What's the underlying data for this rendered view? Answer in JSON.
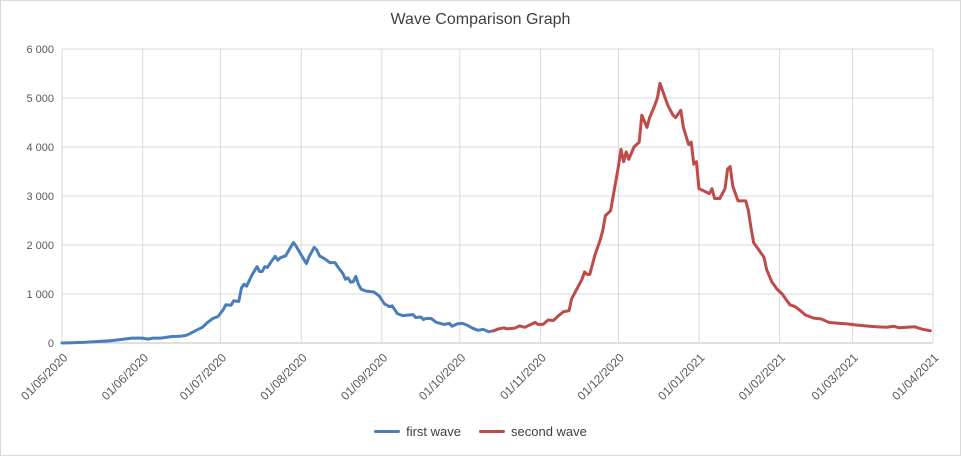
{
  "chart_data": {
    "type": "line",
    "title": "Wave Comparison  Graph",
    "xlabel": "",
    "ylabel": "",
    "ylim": [
      0,
      6000
    ],
    "yticks": [
      0,
      1000,
      2000,
      3000,
      4000,
      5000,
      6000
    ],
    "ytick_labels": [
      "0",
      "1 000",
      "2 000",
      "3 000",
      "4 000",
      "5 000",
      "6 000"
    ],
    "xlim": [
      "2020-05-01",
      "2021-04-01"
    ],
    "xticks": [
      "2020-05-01",
      "2020-06-01",
      "2020-07-01",
      "2020-08-01",
      "2020-09-01",
      "2020-10-01",
      "2020-11-01",
      "2020-12-01",
      "2021-01-01",
      "2021-02-01",
      "2021-03-01",
      "2021-04-01"
    ],
    "xtick_labels": [
      "01/05/2020",
      "01/06/2020",
      "01/07/2020",
      "01/08/2020",
      "01/09/2020",
      "01/10/2020",
      "01/11/2020",
      "01/12/2020",
      "01/01/2021",
      "01/02/2021",
      "01/03/2021",
      "01/04/2021"
    ],
    "grid": "vertical and horizontal",
    "legend": "bottom",
    "series": [
      {
        "name": "first wave",
        "color": "#4a7ebb",
        "points": [
          [
            "2020-05-01",
            0
          ],
          [
            "2020-05-05",
            5
          ],
          [
            "2020-05-10",
            15
          ],
          [
            "2020-05-15",
            30
          ],
          [
            "2020-05-20",
            50
          ],
          [
            "2020-05-25",
            80
          ],
          [
            "2020-05-28",
            100
          ],
          [
            "2020-06-01",
            100
          ],
          [
            "2020-06-03",
            80
          ],
          [
            "2020-06-05",
            100
          ],
          [
            "2020-06-08",
            100
          ],
          [
            "2020-06-12",
            130
          ],
          [
            "2020-06-16",
            140
          ],
          [
            "2020-06-18",
            160
          ],
          [
            "2020-06-21",
            240
          ],
          [
            "2020-06-24",
            320
          ],
          [
            "2020-06-26",
            420
          ],
          [
            "2020-06-28",
            500
          ],
          [
            "2020-06-30",
            540
          ],
          [
            "2020-07-02",
            680
          ],
          [
            "2020-07-03",
            780
          ],
          [
            "2020-07-05",
            770
          ],
          [
            "2020-07-06",
            860
          ],
          [
            "2020-07-08",
            850
          ],
          [
            "2020-07-09",
            1120
          ],
          [
            "2020-07-10",
            1200
          ],
          [
            "2020-07-11",
            1160
          ],
          [
            "2020-07-13",
            1380
          ],
          [
            "2020-07-15",
            1560
          ],
          [
            "2020-07-16",
            1460
          ],
          [
            "2020-07-17",
            1460
          ],
          [
            "2020-07-18",
            1560
          ],
          [
            "2020-07-19",
            1540
          ],
          [
            "2020-07-21",
            1700
          ],
          [
            "2020-07-22",
            1770
          ],
          [
            "2020-07-23",
            1690
          ],
          [
            "2020-07-24",
            1740
          ],
          [
            "2020-07-26",
            1780
          ],
          [
            "2020-07-28",
            1960
          ],
          [
            "2020-07-29",
            2050
          ],
          [
            "2020-07-30",
            1980
          ],
          [
            "2020-08-01",
            1800
          ],
          [
            "2020-08-03",
            1620
          ],
          [
            "2020-08-04",
            1760
          ],
          [
            "2020-08-06",
            1950
          ],
          [
            "2020-08-07",
            1900
          ],
          [
            "2020-08-08",
            1780
          ],
          [
            "2020-08-10",
            1720
          ],
          [
            "2020-08-12",
            1640
          ],
          [
            "2020-08-14",
            1640
          ],
          [
            "2020-08-15",
            1560
          ],
          [
            "2020-08-17",
            1420
          ],
          [
            "2020-08-18",
            1300
          ],
          [
            "2020-08-19",
            1330
          ],
          [
            "2020-08-20",
            1240
          ],
          [
            "2020-08-21",
            1250
          ],
          [
            "2020-08-22",
            1360
          ],
          [
            "2020-08-23",
            1200
          ],
          [
            "2020-08-24",
            1100
          ],
          [
            "2020-08-26",
            1060
          ],
          [
            "2020-08-29",
            1040
          ],
          [
            "2020-08-31",
            960
          ],
          [
            "2020-09-02",
            800
          ],
          [
            "2020-09-04",
            740
          ],
          [
            "2020-09-05",
            760
          ],
          [
            "2020-09-07",
            600
          ],
          [
            "2020-09-09",
            560
          ],
          [
            "2020-09-13",
            580
          ],
          [
            "2020-09-14",
            520
          ],
          [
            "2020-09-16",
            530
          ],
          [
            "2020-09-17",
            480
          ],
          [
            "2020-09-18",
            500
          ],
          [
            "2020-09-20",
            500
          ],
          [
            "2020-09-22",
            420
          ],
          [
            "2020-09-25",
            380
          ],
          [
            "2020-09-27",
            400
          ],
          [
            "2020-09-28",
            340
          ],
          [
            "2020-09-30",
            390
          ],
          [
            "2020-10-02",
            400
          ],
          [
            "2020-10-04",
            360
          ],
          [
            "2020-10-06",
            300
          ],
          [
            "2020-10-08",
            260
          ],
          [
            "2020-10-10",
            280
          ],
          [
            "2020-10-12",
            230
          ],
          [
            "2020-10-14",
            250
          ]
        ]
      },
      {
        "name": "second wave",
        "color": "#be4b48",
        "points": [
          [
            "2020-10-14",
            250
          ],
          [
            "2020-10-16",
            290
          ],
          [
            "2020-10-18",
            310
          ],
          [
            "2020-10-19",
            290
          ],
          [
            "2020-10-22",
            300
          ],
          [
            "2020-10-24",
            350
          ],
          [
            "2020-10-26",
            320
          ],
          [
            "2020-10-28",
            370
          ],
          [
            "2020-10-30",
            420
          ],
          [
            "2020-10-31",
            380
          ],
          [
            "2020-11-02",
            380
          ],
          [
            "2020-11-04",
            470
          ],
          [
            "2020-11-06",
            460
          ],
          [
            "2020-11-08",
            560
          ],
          [
            "2020-11-10",
            640
          ],
          [
            "2020-11-12",
            660
          ],
          [
            "2020-11-13",
            900
          ],
          [
            "2020-11-15",
            1100
          ],
          [
            "2020-11-17",
            1300
          ],
          [
            "2020-11-18",
            1450
          ],
          [
            "2020-11-19",
            1400
          ],
          [
            "2020-11-20",
            1400
          ],
          [
            "2020-11-22",
            1800
          ],
          [
            "2020-11-24",
            2100
          ],
          [
            "2020-11-25",
            2300
          ],
          [
            "2020-11-26",
            2600
          ],
          [
            "2020-11-28",
            2700
          ],
          [
            "2020-11-30",
            3300
          ],
          [
            "2020-12-01",
            3600
          ],
          [
            "2020-12-02",
            3950
          ],
          [
            "2020-12-03",
            3700
          ],
          [
            "2020-12-04",
            3900
          ],
          [
            "2020-12-05",
            3750
          ],
          [
            "2020-12-07",
            4000
          ],
          [
            "2020-12-09",
            4100
          ],
          [
            "2020-12-10",
            4650
          ],
          [
            "2020-12-12",
            4400
          ],
          [
            "2020-12-13",
            4600
          ],
          [
            "2020-12-15",
            4850
          ],
          [
            "2020-12-16",
            5000
          ],
          [
            "2020-12-17",
            5300
          ],
          [
            "2020-12-18",
            5150
          ],
          [
            "2020-12-20",
            4850
          ],
          [
            "2020-12-22",
            4650
          ],
          [
            "2020-12-23",
            4600
          ],
          [
            "2020-12-25",
            4750
          ],
          [
            "2020-12-26",
            4400
          ],
          [
            "2020-12-28",
            4050
          ],
          [
            "2020-12-29",
            4100
          ],
          [
            "2020-12-30",
            3650
          ],
          [
            "2020-12-31",
            3700
          ],
          [
            "2021-01-01",
            3150
          ],
          [
            "2021-01-03",
            3100
          ],
          [
            "2021-01-05",
            3050
          ],
          [
            "2021-01-06",
            3150
          ],
          [
            "2021-01-07",
            2950
          ],
          [
            "2021-01-09",
            2950
          ],
          [
            "2021-01-11",
            3150
          ],
          [
            "2021-01-12",
            3550
          ],
          [
            "2021-01-13",
            3600
          ],
          [
            "2021-01-14",
            3200
          ],
          [
            "2021-01-16",
            2900
          ],
          [
            "2021-01-19",
            2900
          ],
          [
            "2021-01-20",
            2700
          ],
          [
            "2021-01-21",
            2350
          ],
          [
            "2021-01-22",
            2050
          ],
          [
            "2021-01-24",
            1900
          ],
          [
            "2021-01-26",
            1750
          ],
          [
            "2021-01-27",
            1500
          ],
          [
            "2021-01-29",
            1250
          ],
          [
            "2021-01-31",
            1100
          ],
          [
            "2021-02-02",
            1000
          ],
          [
            "2021-02-04",
            850
          ],
          [
            "2021-02-05",
            780
          ],
          [
            "2021-02-07",
            740
          ],
          [
            "2021-02-09",
            660
          ],
          [
            "2021-02-11",
            570
          ],
          [
            "2021-02-14",
            510
          ],
          [
            "2021-02-17",
            490
          ],
          [
            "2021-02-20",
            420
          ],
          [
            "2021-02-24",
            400
          ],
          [
            "2021-02-27",
            390
          ],
          [
            "2021-03-02",
            370
          ],
          [
            "2021-03-06",
            350
          ],
          [
            "2021-03-10",
            330
          ],
          [
            "2021-03-14",
            320
          ],
          [
            "2021-03-17",
            340
          ],
          [
            "2021-03-19",
            310
          ],
          [
            "2021-03-22",
            320
          ],
          [
            "2021-03-25",
            330
          ],
          [
            "2021-03-28",
            280
          ],
          [
            "2021-03-31",
            250
          ]
        ]
      }
    ]
  }
}
